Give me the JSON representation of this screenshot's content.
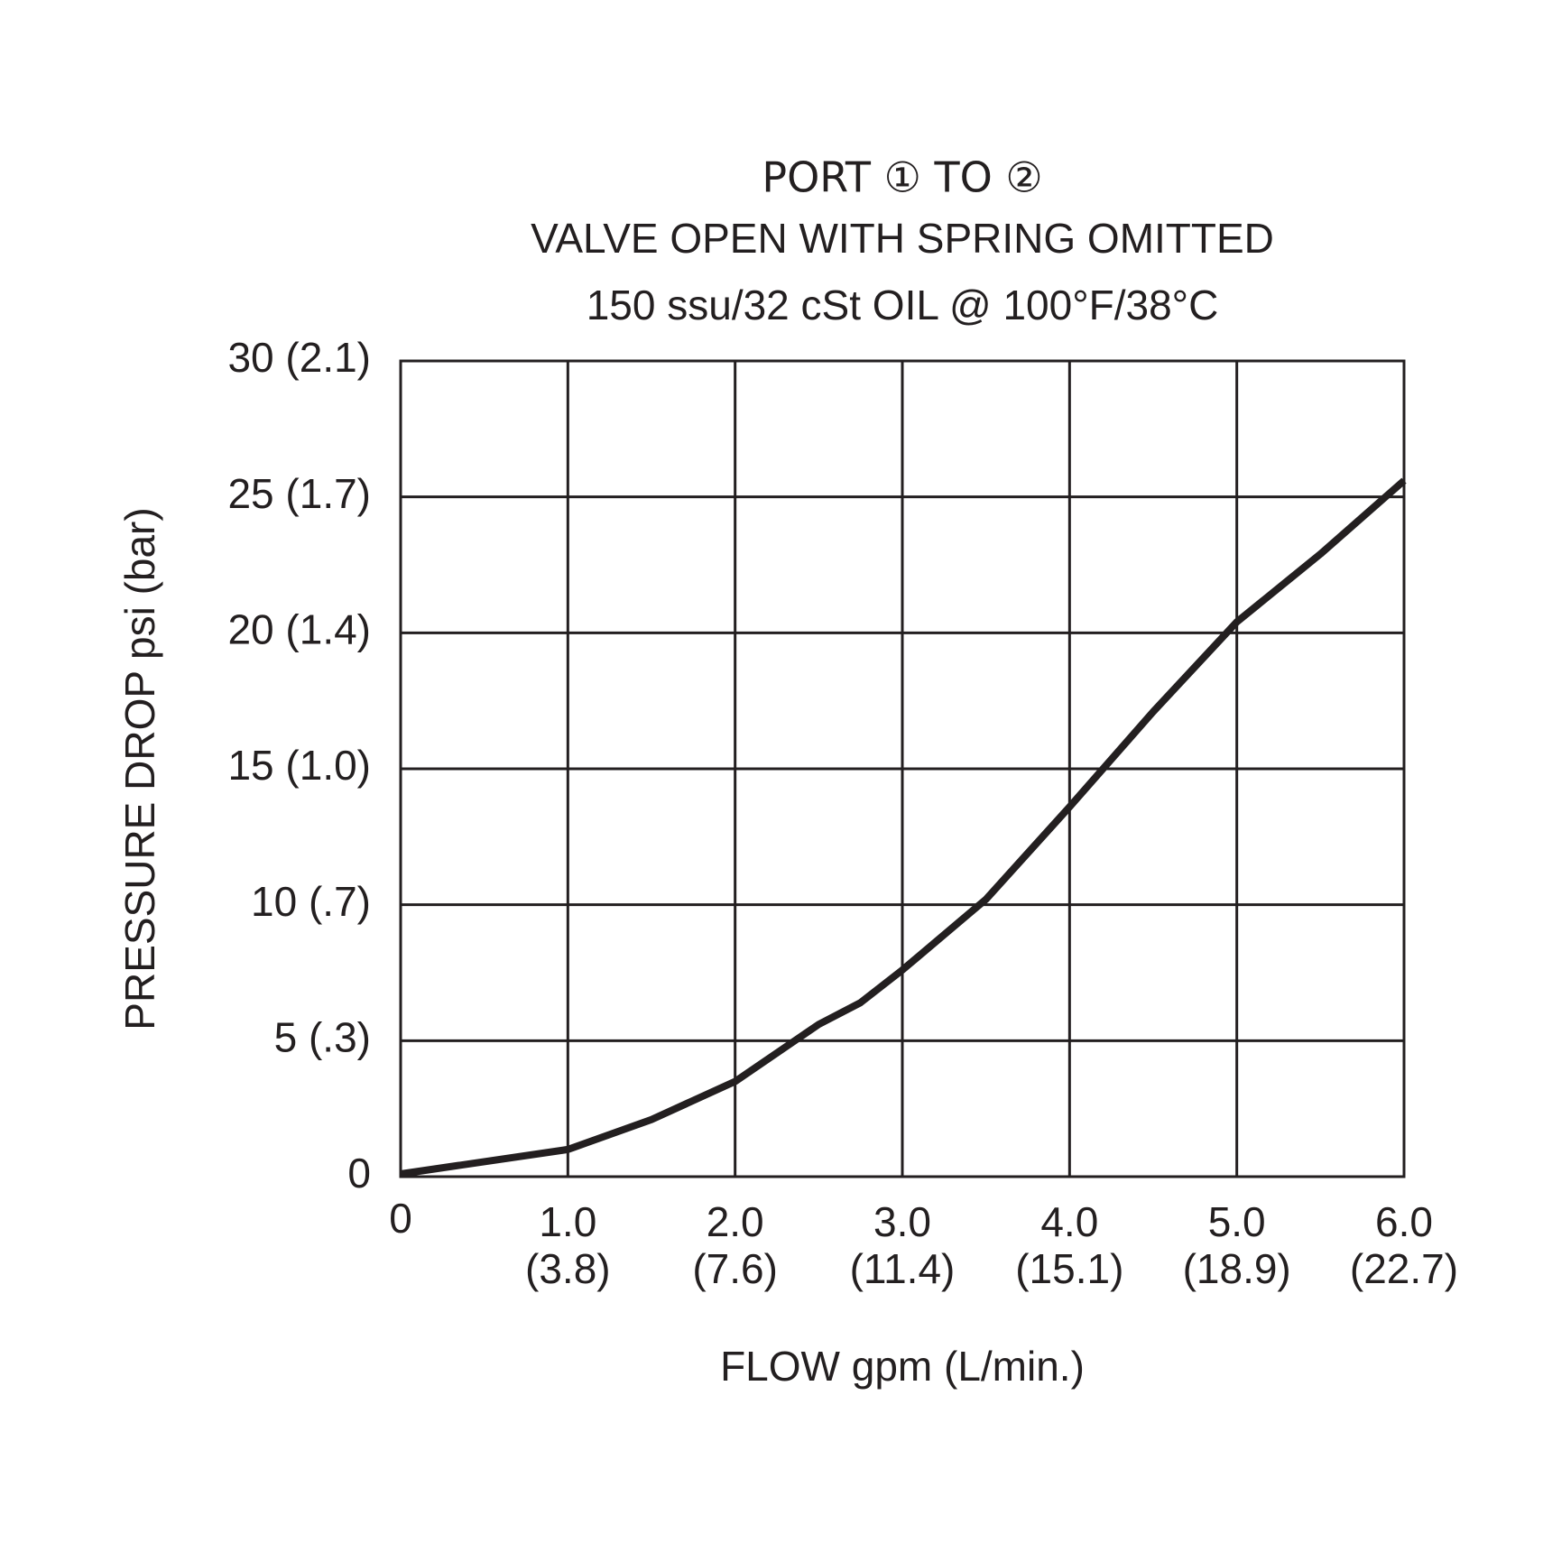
{
  "chart_data": {
    "type": "line",
    "title": "PORT ① TO ②",
    "subtitle": [
      "VALVE OPEN WITH SPRING OMITTED",
      "150 ssu/32 cSt OIL @ 100°F/38°C"
    ],
    "xlabel": "FLOW gpm (L/min.)",
    "ylabel": "PRESSURE DROP psi (bar)",
    "x": [
      0,
      1.0,
      1.5,
      2.0,
      2.5,
      2.75,
      3.0,
      3.5,
      4.0,
      4.5,
      5.0,
      5.5,
      6.0
    ],
    "series": [
      {
        "color": "#231f20",
        "values": [
          0.1,
          1.0,
          2.1,
          3.5,
          5.6,
          6.4,
          7.6,
          10.2,
          13.6,
          17.1,
          20.4,
          22.9,
          25.6
        ]
      }
    ],
    "xlim": [
      0,
      6
    ],
    "ylim": [
      0,
      30
    ],
    "xticks": [
      0,
      {
        "value": 1,
        "label": "1.0 (3.8)"
      },
      {
        "value": 2,
        "label": "2.0 (7.6)"
      },
      {
        "value": 3,
        "label": "3.0 (11.4)"
      },
      {
        "value": 4,
        "label": "4.0 (15.1)"
      },
      {
        "value": 5,
        "label": "5.0 (18.9)"
      },
      {
        "value": 6,
        "label": "6.0 (22.7)"
      }
    ],
    "yticks": [
      0,
      {
        "value": 5,
        "label": "5 (.3)"
      },
      {
        "value": 10,
        "label": "10 (.7)"
      },
      {
        "value": 15,
        "label": "15 (1.0)"
      },
      {
        "value": 20,
        "label": "20 (1.4)"
      },
      {
        "value": 25,
        "label": "25 (1.7)"
      },
      {
        "value": 30,
        "label": "30 (2.1)"
      }
    ],
    "grid": true
  }
}
